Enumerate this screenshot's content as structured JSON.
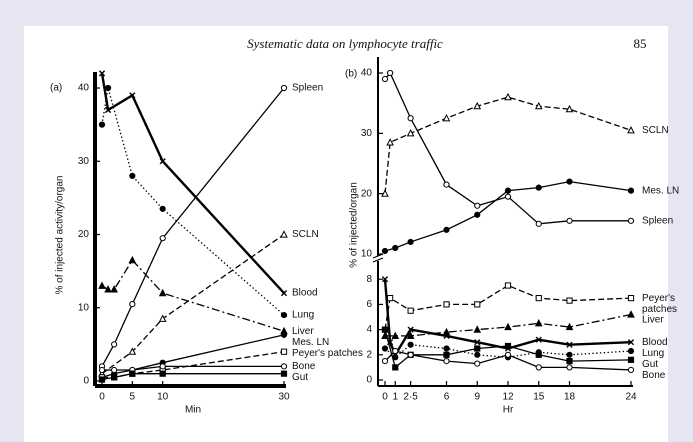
{
  "header": {
    "title": "Systematic data on lymphocyte traffic",
    "page_number": "85"
  },
  "chart_data": [
    {
      "type": "line",
      "panel": "(a)",
      "x_label": "Min",
      "y_label": "% of injected activity/organ",
      "xlim": [
        0,
        30
      ],
      "xticks": [
        0,
        5,
        10,
        30
      ],
      "ylim": [
        0,
        40
      ],
      "yticks": [
        0,
        10,
        20,
        30,
        40
      ],
      "grid": false,
      "series": [
        {
          "name": "Spleen",
          "color": "#000000",
          "line": "solid",
          "marker": "circle-open",
          "x": [
            0,
            2,
            5,
            10,
            30
          ],
          "values": [
            2,
            5,
            10.5,
            19.5,
            40
          ]
        },
        {
          "name": "SCLN",
          "color": "#000000",
          "line": "dashed",
          "marker": "triangle-open",
          "x": [
            0,
            5,
            10,
            30
          ],
          "values": [
            1,
            4,
            8.5,
            20
          ]
        },
        {
          "name": "Blood",
          "color": "#000000",
          "line": "heavy",
          "marker": "x",
          "x": [
            0,
            1,
            5,
            10,
            30
          ],
          "values": [
            42,
            37,
            39,
            30,
            12
          ]
        },
        {
          "name": "Lung",
          "color": "#000000",
          "line": "dotted",
          "marker": "circle",
          "x": [
            0,
            1,
            5,
            10,
            30
          ],
          "values": [
            35,
            40,
            28,
            23.5,
            9
          ]
        },
        {
          "name": "Liver",
          "color": "#000000",
          "line": "dashdot",
          "marker": "triangle",
          "x": [
            0,
            1,
            2,
            5,
            10,
            30
          ],
          "values": [
            13,
            12.5,
            12.5,
            16.5,
            12,
            6.8
          ]
        },
        {
          "name": "Mes. LN",
          "color": "#000000",
          "line": "solid",
          "marker": "circle",
          "x": [
            0,
            2,
            5,
            10,
            30
          ],
          "values": [
            0.5,
            1,
            1.5,
            2.5,
            6.3
          ]
        },
        {
          "name": "Peyer's patches",
          "color": "#000000",
          "line": "dashed",
          "marker": "square-open",
          "x": [
            0,
            2,
            5,
            10,
            30
          ],
          "values": [
            0.5,
            0.5,
            1,
            1.5,
            4
          ]
        },
        {
          "name": "Bone",
          "color": "#000000",
          "line": "solid",
          "marker": "circle-open",
          "x": [
            0,
            2,
            5,
            10,
            30
          ],
          "values": [
            1.5,
            1.5,
            1.5,
            2,
            2
          ]
        },
        {
          "name": "Gut",
          "color": "#000000",
          "line": "solid",
          "marker": "square",
          "x": [
            0,
            2,
            5,
            10,
            30
          ],
          "values": [
            0.2,
            0.5,
            1,
            1,
            1
          ]
        }
      ]
    },
    {
      "type": "line",
      "panel": "(b)",
      "x_label": "Hr",
      "y_label": "% of injected/organ",
      "xlim": [
        0,
        24
      ],
      "xticks": [
        0,
        1,
        {
          "value": 2.5,
          "label": "2·5"
        },
        6,
        9,
        12,
        15,
        18,
        24
      ],
      "ylim": [
        0,
        40
      ],
      "ybreak": 10,
      "yticks": [
        0,
        2,
        4,
        6,
        8,
        10,
        20,
        30,
        40
      ],
      "grid": false,
      "series": [
        {
          "name": "SCLN",
          "color": "#000000",
          "line": "dashed",
          "marker": "triangle-open",
          "x": [
            0,
            0.5,
            2.5,
            6,
            9,
            12,
            15,
            18,
            24
          ],
          "values": [
            20,
            28.5,
            30,
            32.5,
            34.5,
            36,
            34.5,
            34,
            30.5
          ]
        },
        {
          "name": "Mes. LN",
          "color": "#000000",
          "line": "solid",
          "marker": "circle",
          "x": [
            0,
            1,
            2.5,
            6,
            9,
            12,
            15,
            18,
            24
          ],
          "values": [
            10.5,
            11,
            12,
            14,
            16.5,
            20.5,
            21,
            22,
            20.5
          ]
        },
        {
          "name": "Spleen",
          "color": "#000000",
          "line": "solid",
          "marker": "circle-open",
          "x": [
            0,
            0.5,
            2.5,
            6,
            9,
            12,
            15,
            18,
            24
          ],
          "values": [
            39,
            40,
            32.5,
            21.5,
            18,
            19.5,
            15,
            15.5,
            15.5
          ]
        },
        {
          "name": "Peyer's patches",
          "color": "#000000",
          "line": "dashed",
          "marker": "square-open",
          "x": [
            0,
            0.5,
            2.5,
            6,
            9,
            12,
            15,
            18,
            24
          ],
          "values": [
            4,
            6.5,
            5.5,
            6,
            6,
            7.5,
            6.5,
            6.3,
            6.5
          ]
        },
        {
          "name": "Liver",
          "color": "#000000",
          "line": "dashdot",
          "marker": "triangle",
          "x": [
            0,
            1,
            2.5,
            6,
            9,
            12,
            15,
            18,
            24
          ],
          "values": [
            3.5,
            3.5,
            3.5,
            3.8,
            4,
            4.2,
            4.5,
            4.2,
            5.2
          ]
        },
        {
          "name": "Blood",
          "color": "#000000",
          "line": "heavy",
          "marker": "x",
          "x": [
            0,
            0.5,
            1,
            2.5,
            6,
            9,
            12,
            15,
            18,
            24
          ],
          "values": [
            8,
            3,
            2,
            4,
            3.5,
            3,
            2.5,
            3.2,
            2.8,
            3
          ]
        },
        {
          "name": "Lung",
          "color": "#000000",
          "line": "dotted",
          "marker": "circle",
          "x": [
            0,
            1,
            2.5,
            6,
            9,
            12,
            15,
            18,
            24
          ],
          "values": [
            2.5,
            1.8,
            2.8,
            2.5,
            2,
            1.8,
            2.2,
            2,
            2.3
          ]
        },
        {
          "name": "Gut",
          "color": "#000000",
          "line": "solid",
          "marker": "square",
          "x": [
            0,
            1,
            2.5,
            6,
            9,
            12,
            15,
            18,
            24
          ],
          "values": [
            4,
            1,
            2,
            2,
            2.5,
            2.7,
            2,
            1.5,
            1.6
          ]
        },
        {
          "name": "Bone",
          "color": "#000000",
          "line": "solid",
          "marker": "circle-open",
          "x": [
            0,
            1,
            2.5,
            6,
            9,
            12,
            15,
            18,
            24
          ],
          "values": [
            1.5,
            2.3,
            2,
            1.5,
            1.3,
            2,
            1,
            1,
            0.8
          ]
        }
      ]
    }
  ]
}
